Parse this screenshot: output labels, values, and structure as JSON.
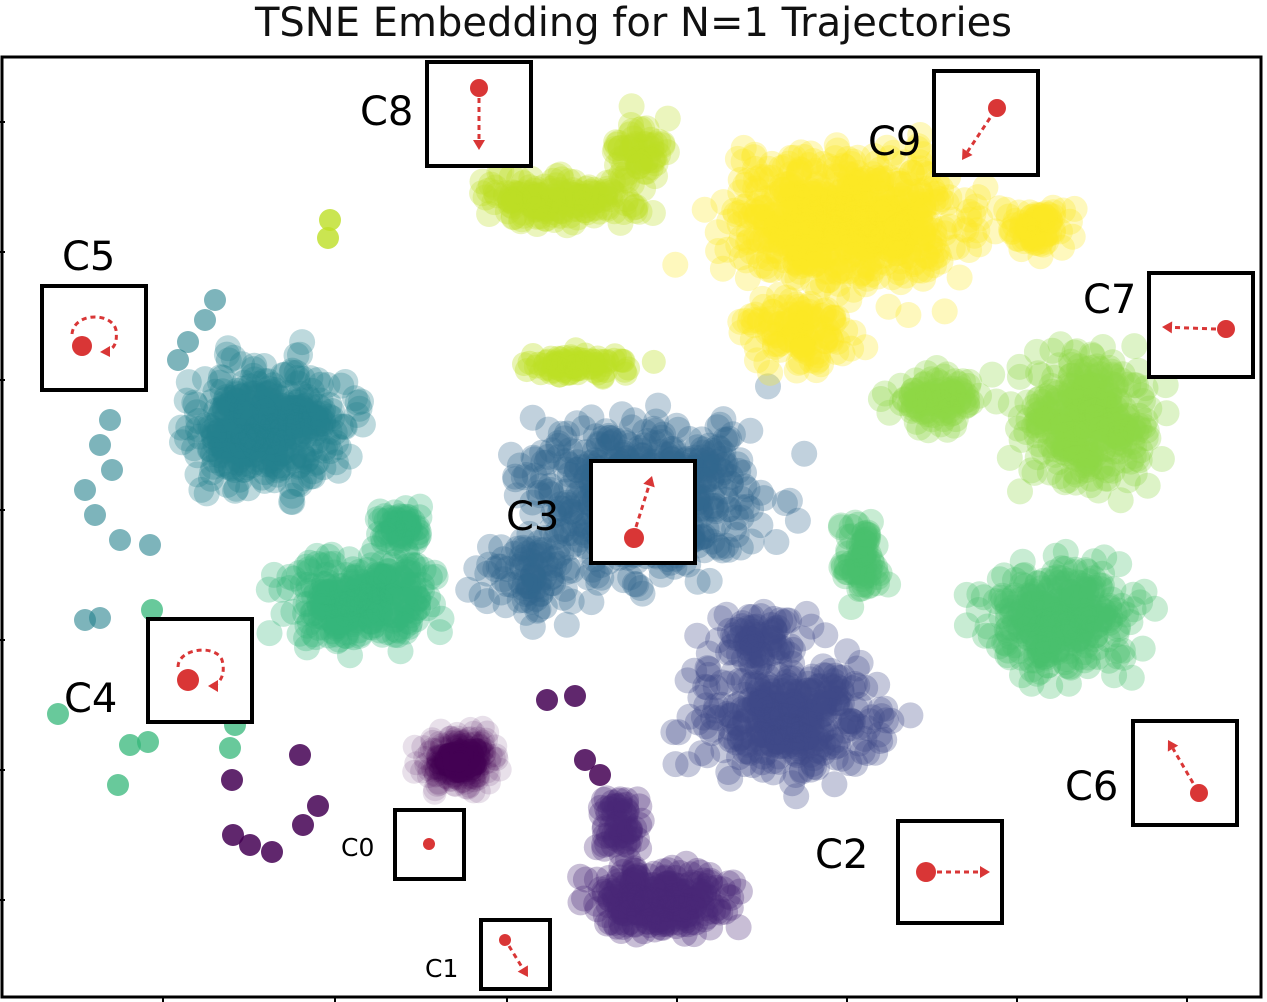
{
  "chart_data": {
    "type": "scatter",
    "title": "TSNE Embedding for N=1 Trajectories",
    "xlabel": "",
    "ylabel": "",
    "grid": false,
    "colormap": "viridis",
    "clusters": [
      {
        "label": "C0",
        "color": "#440154",
        "motion": "stationary"
      },
      {
        "label": "C1",
        "color": "#482878",
        "motion": "down-right"
      },
      {
        "label": "C2",
        "color": "#3e4989",
        "motion": "right"
      },
      {
        "label": "C3",
        "color": "#31688e",
        "motion": "up"
      },
      {
        "label": "C4",
        "color": "#35b779",
        "motion": "circle"
      },
      {
        "label": "C5",
        "color": "#26828e",
        "motion": "circle"
      },
      {
        "label": "C6",
        "color": "#4ac16d",
        "motion": "up-left"
      },
      {
        "label": "C7",
        "color": "#8fd744",
        "motion": "left"
      },
      {
        "label": "C8",
        "color": "#bddf26",
        "motion": "down"
      },
      {
        "label": "C9",
        "color": "#fde725",
        "motion": "down-left"
      }
    ]
  }
}
